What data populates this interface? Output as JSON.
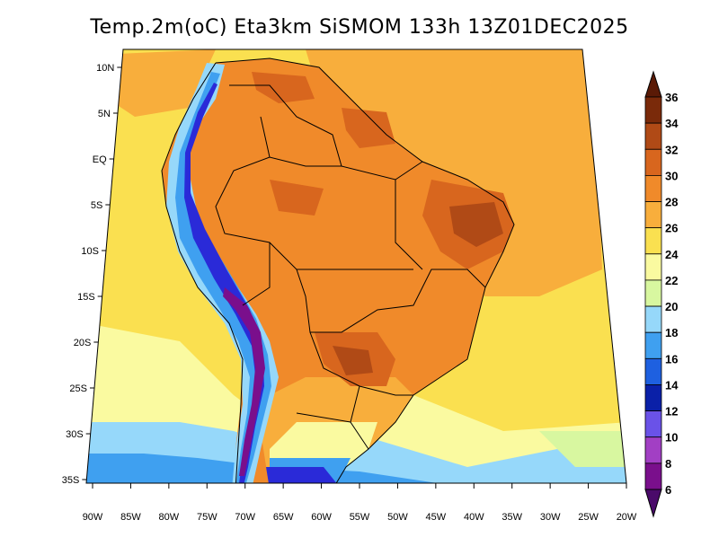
{
  "title": "Temp.2m(oC) Eta3km SiSMOM 133h 13Z01DEC2025",
  "lat_ticks": [
    "10N",
    "5N",
    "EQ",
    "5S",
    "10S",
    "15S",
    "20S",
    "25S",
    "30S",
    "35S"
  ],
  "lon_ticks": [
    "90W",
    "85W",
    "80W",
    "75W",
    "70W",
    "65W",
    "60W",
    "55W",
    "50W",
    "45W",
    "40W",
    "35W",
    "30W",
    "25W",
    "20W"
  ],
  "colorbar": {
    "labels": [
      "6",
      "8",
      "10",
      "12",
      "14",
      "16",
      "18",
      "20",
      "22",
      "24",
      "26",
      "28",
      "30",
      "32",
      "34",
      "36"
    ],
    "colors": [
      "#7a0f8c",
      "#a23fc4",
      "#6a52e8",
      "#2a2ad8",
      "#0a20a8",
      "#1e60e0",
      "#3fa0f0",
      "#96d8fa",
      "#d8f7a0",
      "#fafaa0",
      "#fae050",
      "#f8ae3c",
      "#f08a2a",
      "#d8661e",
      "#b04a16",
      "#7a2a0a",
      "#5a1a06"
    ],
    "low_color": "#4a0a6a",
    "high_color": "#5a1a06"
  },
  "colors": {
    "ocean_tropical": "#f8ae3c",
    "ocean_mid": "#fae050",
    "ocean_cool": "#96d8fa",
    "brazil_interior": "#f08a2a",
    "hot_spots": "#d8661e",
    "andes_cold": "#7a0f8c"
  }
}
